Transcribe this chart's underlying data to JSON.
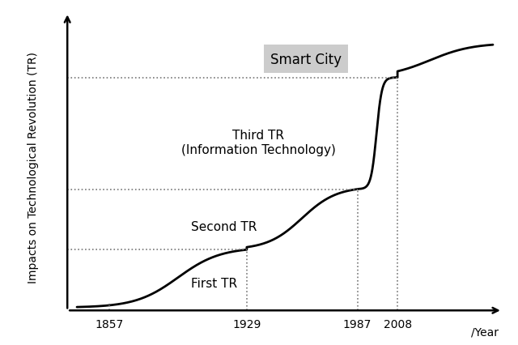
{
  "ylabel": "Impacts on Technological Revolution (TR)",
  "xlabel": "/Year",
  "x_ticks": [
    1857,
    1929,
    1987,
    2008
  ],
  "x_tick_labels": [
    "1857",
    "1929",
    "1987",
    "2008"
  ],
  "curve_color": "#000000",
  "background_color": "#ffffff",
  "dashed_color": "#777777",
  "smart_city_box_color": "#cccccc",
  "font_size_labels": 11,
  "font_size_axis": 10,
  "label_first_tr": "First TR",
  "label_second_tr": "Second TR",
  "label_third_tr": "Third TR\n(Information Technology)",
  "label_smart_city": "Smart City"
}
